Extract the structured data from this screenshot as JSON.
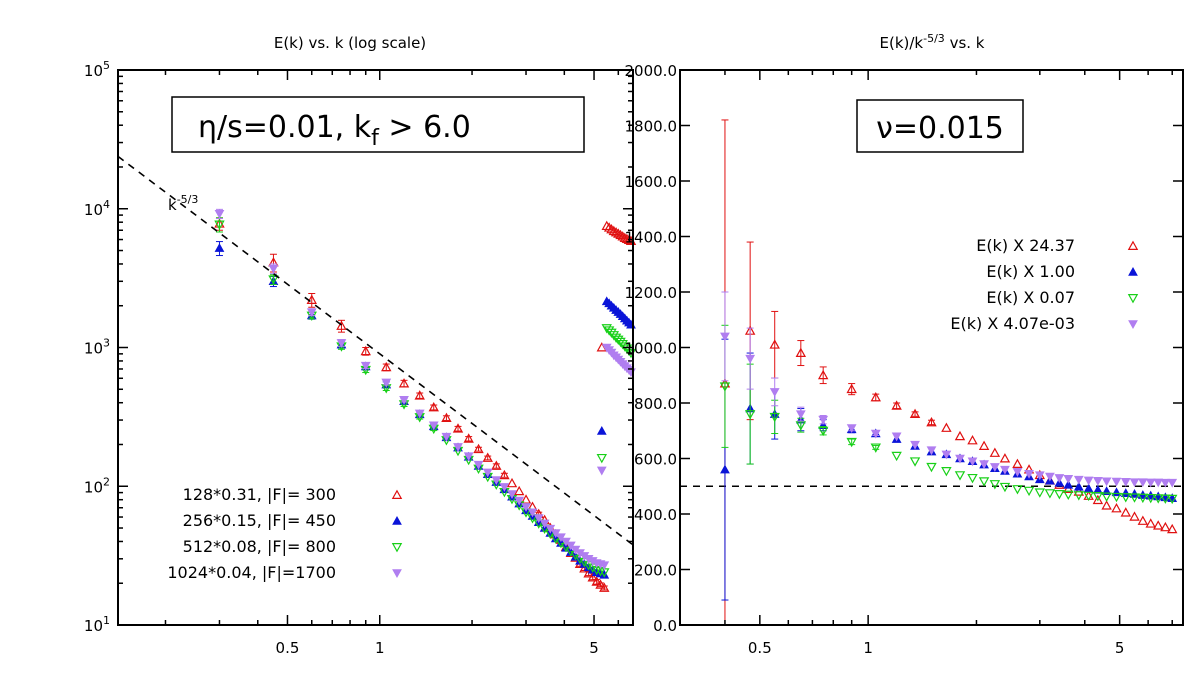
{
  "colors": {
    "red": "#e01010",
    "blue": "#0a14d8",
    "green": "#18d018",
    "purple": "#b07ef0"
  },
  "chart_data": [
    {
      "type": "scatter",
      "title": "E(k) vs. k (log scale)",
      "xscale": "log",
      "yscale": "log",
      "xlim": [
        0.14,
        6.7
      ],
      "ylim": [
        10,
        100000
      ],
      "xticks": [
        "0.5",
        "1",
        "5"
      ],
      "yticks": [
        {
          "mant": "10",
          "exp": "1"
        },
        {
          "mant": "10",
          "exp": "2"
        },
        {
          "mant": "10",
          "exp": "3"
        },
        {
          "mant": "10",
          "exp": "4"
        },
        {
          "mant": "10",
          "exp": "5"
        }
      ],
      "annotation": "η/s=0.01, k",
      "annotation_sub": "f",
      "annotation_tail": " > 6.0",
      "fit_label": "k",
      "fit_label_exp": "-5/3",
      "legend_position": "bottom-left",
      "series": [
        {
          "name": "128*0.31, |F|= 300",
          "color": "red",
          "marker": "tri-up-open",
          "x": [
            0.3,
            0.45,
            0.6,
            0.75,
            0.9,
            1.05,
            1.2,
            1.35,
            1.5,
            1.65,
            1.8,
            1.95,
            2.1,
            2.25,
            2.4,
            2.55,
            2.7,
            2.85,
            3.0,
            3.15,
            3.3,
            3.45,
            3.6,
            3.75,
            3.9,
            4.05,
            4.2,
            4.35,
            4.5,
            4.65,
            4.8,
            4.95,
            5.1,
            5.25,
            5.4
          ],
          "y": [
            7800,
            4100,
            2200,
            1430,
            940,
            720,
            550,
            450,
            370,
            310,
            260,
            220,
            185,
            160,
            140,
            120,
            105,
            92,
            80,
            71,
            63,
            57,
            50,
            45,
            41,
            36.5,
            33,
            30.5,
            27.5,
            25.5,
            23.5,
            22,
            20.5,
            19.5,
            18.5
          ],
          "err": [
            800,
            600,
            250,
            140,
            60,
            40,
            30,
            20,
            15,
            12,
            10,
            8,
            6,
            5,
            5,
            4,
            3,
            2.5,
            2,
            2,
            2,
            1.5,
            1.5,
            1.2,
            1.2,
            1,
            1,
            1,
            1,
            0.8,
            0.8,
            0.8,
            0.8,
            0.6,
            0.6
          ],
          "x_tail": [
            5.5,
            5.6,
            5.7,
            5.8,
            5.9,
            6.0,
            6.1,
            6.2,
            6.3,
            6.4,
            6.5,
            6.6
          ],
          "y_tail": [
            7500,
            7300,
            7100,
            6900,
            6750,
            6600,
            6450,
            6300,
            6150,
            6050,
            5950,
            5850
          ],
          "x_iso": [
            5.3
          ],
          "y_iso": [
            1000
          ]
        },
        {
          "name": "256*0.15, |F|= 450",
          "color": "blue",
          "marker": "tri-up-filled",
          "x": [
            0.3,
            0.45,
            0.6,
            0.75,
            0.9,
            1.05,
            1.2,
            1.35,
            1.5,
            1.65,
            1.8,
            1.95,
            2.1,
            2.25,
            2.4,
            2.55,
            2.7,
            2.85,
            3.0,
            3.15,
            3.3,
            3.45,
            3.6,
            3.75,
            3.9,
            4.05,
            4.2,
            4.35,
            4.5,
            4.65,
            4.8,
            4.95,
            5.1,
            5.25,
            5.4
          ],
          "y": [
            5200,
            3000,
            1700,
            1050,
            730,
            540,
            410,
            330,
            270,
            225,
            190,
            163,
            140,
            122,
            107,
            95,
            84,
            75,
            67,
            61,
            55,
            50,
            46,
            42,
            39,
            36,
            33.5,
            31,
            29,
            27.5,
            26,
            25,
            24,
            23.5,
            23
          ],
          "err": [
            600,
            250,
            100,
            60,
            40,
            25,
            18,
            12,
            9,
            7,
            6,
            5,
            4,
            3.5,
            3,
            2.5,
            2,
            2,
            1.5,
            1.5,
            1.2,
            1.2,
            1,
            1,
            1,
            0.8,
            0.8,
            0.8,
            0.8,
            0.6,
            0.6,
            0.6,
            0.6,
            0.5,
            0.5
          ],
          "x_tail": [
            5.5,
            5.6,
            5.7,
            5.8,
            5.9,
            6.0,
            6.1,
            6.2,
            6.3,
            6.4,
            6.5,
            6.6
          ],
          "y_tail": [
            2150,
            2080,
            2000,
            1930,
            1860,
            1800,
            1740,
            1680,
            1620,
            1560,
            1510,
            1460
          ],
          "x_iso": [
            5.3
          ],
          "y_iso": [
            250
          ]
        },
        {
          "name": "512*0.08, |F|= 800",
          "color": "green",
          "marker": "tri-down-open",
          "x": [
            0.3,
            0.45,
            0.6,
            0.75,
            0.9,
            1.05,
            1.2,
            1.35,
            1.5,
            1.65,
            1.8,
            1.95,
            2.1,
            2.25,
            2.4,
            2.55,
            2.7,
            2.85,
            3.0,
            3.15,
            3.3,
            3.45,
            3.6,
            3.75,
            3.9,
            4.05,
            4.2,
            4.35,
            4.5,
            4.65,
            4.8,
            4.95,
            5.1,
            5.25,
            5.4
          ],
          "y": [
            7700,
            3100,
            1700,
            1020,
            690,
            510,
            390,
            315,
            260,
            215,
            180,
            155,
            134,
            117,
            103,
            91,
            81,
            73,
            65,
            59,
            54,
            49.5,
            45.5,
            42,
            39,
            36.5,
            34,
            32,
            30,
            28.5,
            27,
            26,
            25,
            24.5,
            24
          ],
          "err": [
            900,
            250,
            90,
            50,
            30,
            20,
            14,
            10,
            8,
            6,
            5,
            4,
            3.5,
            3,
            2.5,
            2,
            2,
            1.5,
            1.5,
            1.2,
            1.2,
            1,
            1,
            1,
            0.8,
            0.8,
            0.8,
            0.6,
            0.6,
            0.6,
            0.6,
            0.5,
            0.5,
            0.5,
            0.5
          ],
          "x_tail": [
            5.5,
            5.6,
            5.7,
            5.8,
            5.9,
            6.0,
            6.1,
            6.2,
            6.3,
            6.4,
            6.5,
            6.6
          ],
          "y_tail": [
            1380,
            1330,
            1280,
            1230,
            1180,
            1140,
            1100,
            1060,
            1020,
            985,
            950,
            915
          ],
          "x_iso": [
            5.3
          ],
          "y_iso": [
            160
          ]
        },
        {
          "name": "1024*0.04, |F|=1700",
          "color": "purple",
          "marker": "tri-down-filled",
          "x": [
            0.3,
            0.45,
            0.6,
            0.75,
            0.9,
            1.05,
            1.2,
            1.35,
            1.5,
            1.65,
            1.8,
            1.95,
            2.1,
            2.25,
            2.4,
            2.55,
            2.7,
            2.85,
            3.0,
            3.15,
            3.3,
            3.45,
            3.6,
            3.75,
            3.9,
            4.05,
            4.2,
            4.35,
            4.5,
            4.65,
            4.8,
            4.95,
            5.1,
            5.25,
            5.4
          ],
          "y": [
            9200,
            3700,
            1800,
            1080,
            740,
            560,
            420,
            335,
            275,
            228,
            192,
            165,
            143,
            126,
            111,
            99,
            88,
            79,
            71,
            65,
            59,
            54,
            49.5,
            46,
            43,
            40,
            37.5,
            35,
            33,
            31.5,
            30,
            29,
            28,
            27.5,
            27
          ],
          "err": [
            700,
            300,
            100,
            60,
            35,
            22,
            15,
            10,
            8,
            6,
            5,
            4,
            3.5,
            3,
            2.5,
            2,
            2,
            1.5,
            1.5,
            1.2,
            1.2,
            1,
            1,
            1,
            0.8,
            0.8,
            0.8,
            0.6,
            0.6,
            0.6,
            0.6,
            0.5,
            0.5,
            0.5,
            0.5
          ],
          "x_tail": [
            5.5,
            5.6,
            5.7,
            5.8,
            5.9,
            6.0,
            6.1,
            6.2,
            6.3,
            6.4,
            6.5,
            6.6
          ],
          "y_tail": [
            1000,
            960,
            920,
            880,
            850,
            820,
            790,
            760,
            735,
            710,
            690,
            665
          ],
          "x_iso": [
            5.3
          ],
          "y_iso": [
            130
          ]
        }
      ],
      "fit_line": {
        "k_ref": 1.0,
        "E_ref": 900,
        "slope": -1.6667,
        "x_from": 0.14,
        "x_to": 6.7
      }
    },
    {
      "type": "scatter",
      "title": "E(k)/k",
      "title_exp": "-5/3",
      "title_tail": " vs. k",
      "xscale": "log",
      "yscale": "linear",
      "xlim": [
        0.3,
        7.5
      ],
      "ylim": [
        0,
        2000
      ],
      "xticks": [
        "0.5",
        "1",
        "5"
      ],
      "yticks": [
        "0.0",
        "200.0",
        "400.0",
        "600.0",
        "800.0",
        "1000.0",
        "1200.0",
        "1400.0",
        "1600.0",
        "1800.0",
        "2000.0"
      ],
      "annotation": "ν=0.015",
      "reference_y": 500,
      "legend_position": "top-right",
      "series": [
        {
          "name": "E(k) X 24.37",
          "color": "red",
          "marker": "tri-up-open",
          "x": [
            0.4,
            0.47,
            0.55,
            0.65,
            0.75,
            0.9,
            1.05,
            1.2,
            1.35,
            1.5,
            1.65,
            1.8,
            1.95,
            2.1,
            2.25,
            2.4,
            2.6,
            2.8,
            3.0,
            3.2,
            3.4,
            3.6,
            3.85,
            4.1,
            4.35,
            4.6,
            4.9,
            5.2,
            5.5,
            5.8,
            6.1,
            6.4,
            6.7,
            7.0
          ],
          "y": [
            870,
            1060,
            1010,
            980,
            900,
            850,
            820,
            790,
            760,
            730,
            710,
            680,
            665,
            645,
            620,
            600,
            580,
            560,
            540,
            520,
            505,
            490,
            480,
            465,
            450,
            430,
            420,
            405,
            390,
            375,
            365,
            358,
            352,
            345
          ],
          "err": [
            950,
            320,
            120,
            45,
            30,
            20,
            12,
            10,
            8,
            8,
            6,
            6,
            5,
            5,
            4,
            4,
            4,
            3,
            3,
            3,
            3,
            3,
            3,
            3,
            3,
            3,
            3,
            3,
            3,
            3,
            3,
            3,
            3,
            3
          ]
        },
        {
          "name": "E(k) X 1.00",
          "color": "blue",
          "marker": "tri-up-filled",
          "x": [
            0.4,
            0.47,
            0.55,
            0.65,
            0.75,
            0.9,
            1.05,
            1.2,
            1.35,
            1.5,
            1.65,
            1.8,
            1.95,
            2.1,
            2.25,
            2.4,
            2.6,
            2.8,
            3.0,
            3.2,
            3.4,
            3.6,
            3.85,
            4.1,
            4.35,
            4.6,
            4.9,
            5.2,
            5.5,
            5.8,
            6.1,
            6.4,
            6.7,
            7.0
          ],
          "y": [
            560,
            780,
            760,
            740,
            720,
            705,
            690,
            670,
            645,
            625,
            615,
            600,
            590,
            578,
            565,
            555,
            545,
            535,
            525,
            520,
            512,
            505,
            498,
            492,
            487,
            482,
            478,
            475,
            472,
            468,
            466,
            463,
            460,
            457
          ],
          "err": [
            470,
            200,
            90,
            40,
            20,
            12,
            8,
            6,
            5,
            4,
            4,
            3,
            3,
            3,
            3,
            3,
            3,
            3,
            3,
            3,
            3,
            3,
            3,
            3,
            3,
            3,
            3,
            3,
            3,
            3,
            3,
            3,
            3,
            3
          ]
        },
        {
          "name": "E(k) X 0.07",
          "color": "green",
          "marker": "tri-down-open",
          "x": [
            0.4,
            0.47,
            0.55,
            0.65,
            0.75,
            0.9,
            1.05,
            1.2,
            1.35,
            1.5,
            1.65,
            1.8,
            1.95,
            2.1,
            2.25,
            2.4,
            2.6,
            2.8,
            3.0,
            3.2,
            3.4,
            3.6,
            3.85,
            4.1,
            4.35,
            4.6,
            4.9,
            5.2,
            5.5,
            5.8,
            6.1,
            6.4,
            6.7,
            7.0
          ],
          "y": [
            860,
            760,
            750,
            720,
            700,
            660,
            640,
            610,
            590,
            570,
            555,
            540,
            530,
            518,
            508,
            498,
            490,
            484,
            478,
            475,
            472,
            470,
            468,
            466,
            465,
            463,
            462,
            461,
            460,
            459,
            458,
            457,
            456,
            455
          ],
          "err": [
            220,
            180,
            60,
            25,
            15,
            10,
            7,
            5,
            4,
            4,
            3,
            3,
            3,
            3,
            3,
            3,
            3,
            3,
            3,
            3,
            3,
            3,
            3,
            3,
            3,
            3,
            3,
            3,
            3,
            3,
            3,
            3,
            3,
            3
          ]
        },
        {
          "name": "E(k) X 4.07e-03",
          "color": "purple",
          "marker": "tri-down-filled",
          "x": [
            0.4,
            0.47,
            0.55,
            0.65,
            0.75,
            0.9,
            1.05,
            1.2,
            1.35,
            1.5,
            1.65,
            1.8,
            1.95,
            2.1,
            2.25,
            2.4,
            2.6,
            2.8,
            3.0,
            3.2,
            3.4,
            3.6,
            3.85,
            4.1,
            4.35,
            4.6,
            4.9,
            5.2,
            5.5,
            5.8,
            6.1,
            6.4,
            6.7,
            7.0
          ],
          "y": [
            1040,
            960,
            840,
            760,
            740,
            710,
            690,
            680,
            650,
            630,
            615,
            600,
            590,
            580,
            570,
            560,
            552,
            545,
            540,
            535,
            530,
            527,
            524,
            521,
            520,
            518,
            517,
            516,
            515,
            515,
            514,
            514,
            513,
            513
          ],
          "err": [
            160,
            110,
            50,
            25,
            15,
            10,
            7,
            5,
            4,
            4,
            3,
            3,
            3,
            3,
            3,
            3,
            3,
            3,
            3,
            3,
            3,
            3,
            3,
            3,
            3,
            3,
            3,
            3,
            3,
            3,
            3,
            3,
            3,
            3
          ]
        }
      ]
    }
  ]
}
